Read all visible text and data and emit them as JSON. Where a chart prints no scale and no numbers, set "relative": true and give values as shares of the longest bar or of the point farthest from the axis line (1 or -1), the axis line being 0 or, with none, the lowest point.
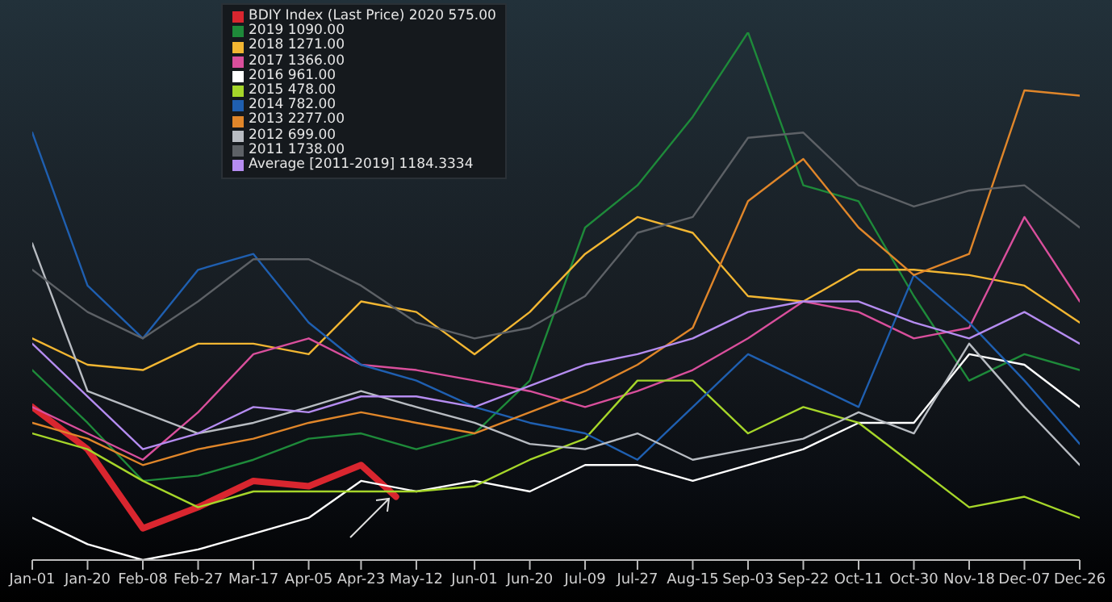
{
  "chart_data": {
    "type": "line",
    "relative": true,
    "legend": "top",
    "grid": false,
    "marker": "none",
    "line_style": "solid",
    "x": [
      "--01-01",
      "--01-20",
      "--02-08",
      "--02-27",
      "--03-17",
      "--04-05",
      "--04-23",
      "--05-12",
      "--06-01",
      "--06-20",
      "--07-09",
      "--07-27",
      "--08-15",
      "--09-03",
      "--09-22",
      "--10-11",
      "--10-30",
      "--11-18",
      "--12-07",
      "--12-26"
    ],
    "xlim": [
      "--01-01",
      "--12-26"
    ],
    "xticks": [
      {
        "value": "--01-01",
        "label": "Jan-01"
      },
      {
        "value": "--01-20",
        "label": "Jan-20"
      },
      {
        "value": "--02-08",
        "label": "Feb-08"
      },
      {
        "value": "--02-27",
        "label": "Feb-27"
      },
      {
        "value": "--03-17",
        "label": "Mar-17"
      },
      {
        "value": "--04-05",
        "label": "Apr-05"
      },
      {
        "value": "--04-23",
        "label": "Apr-23"
      },
      {
        "value": "--05-12",
        "label": "May-12"
      },
      {
        "value": "--06-01",
        "label": "Jun-01"
      },
      {
        "value": "--06-20",
        "label": "Jun-20"
      },
      {
        "value": "--07-09",
        "label": "Jul-09"
      },
      {
        "value": "--07-27",
        "label": "Jul-27"
      },
      {
        "value": "--08-15",
        "label": "Aug-15"
      },
      {
        "value": "--09-03",
        "label": "Sep-03"
      },
      {
        "value": "--09-22",
        "label": "Sep-22"
      },
      {
        "value": "--10-11",
        "label": "Oct-11"
      },
      {
        "value": "--10-30",
        "label": "Oct-30"
      },
      {
        "value": "--11-18",
        "label": "Nov-18"
      },
      {
        "value": "--12-07",
        "label": "Dec-07"
      },
      {
        "value": "--12-26",
        "label": "Dec-26"
      }
    ],
    "series": [
      {
        "name": "BDIY Index (Last Price) 2020 575.00",
        "color": "#d9262f",
        "x": [
          "--01-01",
          "--01-20",
          "--02-08",
          "--02-27",
          "--03-17",
          "--04-05",
          "--04-23",
          "--05-05"
        ],
        "values": [
          0.29,
          0.21,
          0.06,
          0.1,
          0.15,
          0.14,
          0.18,
          0.12
        ]
      },
      {
        "name": "2019 1090.00",
        "color": "#1e8a3a",
        "values": [
          0.36,
          0.26,
          0.15,
          0.16,
          0.19,
          0.23,
          0.24,
          0.21,
          0.24,
          0.34,
          0.63,
          0.71,
          0.84,
          1,
          0.71,
          0.68,
          0.5,
          0.34,
          0.39,
          0.36
        ]
      },
      {
        "name": "2018 1271.00",
        "color": "#f2b632",
        "values": [
          0.42,
          0.37,
          0.36,
          0.41,
          0.41,
          0.39,
          0.49,
          0.47,
          0.39,
          0.47,
          0.58,
          0.65,
          0.62,
          0.5,
          0.49,
          0.55,
          0.55,
          0.54,
          0.52,
          0.45
        ]
      },
      {
        "name": "2017 1366.00",
        "color": "#d94f9c",
        "values": [
          0.29,
          0.24,
          0.19,
          0.28,
          0.39,
          0.42,
          0.37,
          0.36,
          0.34,
          0.32,
          0.29,
          0.32,
          0.36,
          0.42,
          0.49,
          0.47,
          0.42,
          0.44,
          0.65,
          0.49
        ]
      },
      {
        "name": "2016 961.00",
        "color": "#ffffff",
        "values": [
          0.08,
          0.03,
          0,
          0.02,
          0.05,
          0.08,
          0.15,
          0.13,
          0.15,
          0.13,
          0.18,
          0.18,
          0.15,
          0.18,
          0.21,
          0.26,
          0.26,
          0.39,
          0.37,
          0.29
        ]
      },
      {
        "name": "2015 478.00",
        "color": "#a6d62a",
        "values": [
          0.24,
          0.21,
          0.15,
          0.1,
          0.13,
          0.13,
          0.13,
          0.13,
          0.14,
          0.19,
          0.23,
          0.34,
          0.34,
          0.24,
          0.29,
          0.26,
          0.18,
          0.1,
          0.12,
          0.08
        ]
      },
      {
        "name": "2014 782.00",
        "color": "#1f5fb0",
        "values": [
          0.81,
          0.52,
          0.42,
          0.55,
          0.58,
          0.45,
          0.37,
          0.34,
          0.29,
          0.26,
          0.24,
          0.19,
          0.29,
          0.39,
          0.34,
          0.29,
          0.54,
          0.45,
          0.34,
          0.22
        ]
      },
      {
        "name": "2013 2277.00",
        "color": "#e0862a",
        "values": [
          0.26,
          0.23,
          0.18,
          0.21,
          0.23,
          0.26,
          0.28,
          0.26,
          0.24,
          0.28,
          0.32,
          0.37,
          0.44,
          0.68,
          0.76,
          0.63,
          0.54,
          0.58,
          0.89,
          0.88
        ]
      },
      {
        "name": "2012 699.00",
        "color": "#b8bcc2",
        "values": [
          0.6,
          0.32,
          0.28,
          0.24,
          0.26,
          0.29,
          0.32,
          0.29,
          0.26,
          0.22,
          0.21,
          0.24,
          0.19,
          0.21,
          0.23,
          0.28,
          0.24,
          0.41,
          0.29,
          0.18
        ]
      },
      {
        "name": "2011 1738.00",
        "color": "#5d6166",
        "values": [
          0.55,
          0.47,
          0.42,
          0.49,
          0.57,
          0.57,
          0.52,
          0.45,
          0.42,
          0.44,
          0.5,
          0.62,
          0.65,
          0.8,
          0.81,
          0.71,
          0.67,
          0.7,
          0.71,
          0.63
        ]
      },
      {
        "name": "Average [2011-2019] 1184.3334",
        "color": "#b58cf0",
        "values": [
          0.41,
          0.31,
          0.21,
          0.24,
          0.29,
          0.28,
          0.31,
          0.31,
          0.29,
          0.33,
          0.37,
          0.39,
          0.42,
          0.47,
          0.49,
          0.49,
          0.45,
          0.42,
          0.47,
          0.41
        ]
      }
    ]
  }
}
